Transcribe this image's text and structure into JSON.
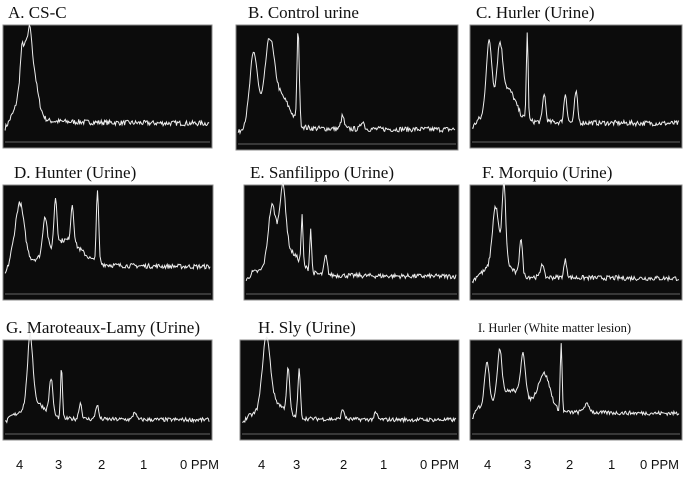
{
  "panels": [
    {
      "title": "A. CS-C"
    },
    {
      "title": "B. Control urine"
    },
    {
      "title": "C. Hurler (Urine)"
    },
    {
      "title": "D. Hunter (Urine)"
    },
    {
      "title": "E. Sanfilippo (Urine)"
    },
    {
      "title": "F. Morquio (Urine)"
    },
    {
      "title": "G. Maroteaux-Lamy (Urine)"
    },
    {
      "title": "H. Sly (Urine)"
    },
    {
      "title": "I. Hurler (White matter lesion)"
    }
  ],
  "axis_labels": [
    [
      "4",
      "3",
      "2",
      "1",
      "0 PPM"
    ],
    [
      "4",
      "3",
      "2",
      "1",
      "0 PPM"
    ],
    [
      "4",
      "3",
      "2",
      "1",
      "0 PPM"
    ]
  ]
}
